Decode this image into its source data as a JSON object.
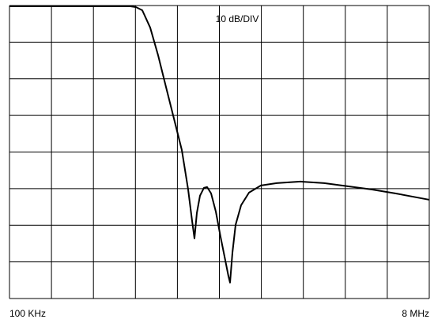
{
  "chart_data": {
    "type": "line",
    "annotation": "10 dB/DIV",
    "xlim": [
      0.1,
      8
    ],
    "xticks": [
      {
        "value": 0.1,
        "label": "100 KHz"
      },
      {
        "value": 8,
        "label": "8 MHz"
      }
    ],
    "ylim": [
      -80,
      0
    ],
    "yticks": [
      -80,
      -70,
      -60,
      -50,
      -40,
      -30,
      -20,
      -10,
      0
    ],
    "x_divisions": 10,
    "color": "#000000",
    "x": [
      0.1,
      1.409,
      2.376,
      2.48,
      2.599,
      2.748,
      2.897,
      3.045,
      3.194,
      3.343,
      3.462,
      3.537,
      3.581,
      3.626,
      3.685,
      3.76,
      3.819,
      3.894,
      3.983,
      4.072,
      4.162,
      4.221,
      4.251,
      4.296,
      4.355,
      4.459,
      4.608,
      4.831,
      5.129,
      5.575,
      6.022,
      6.468,
      6.914,
      7.361,
      8.0
    ],
    "values": [
      -0.22,
      -0.22,
      -0.22,
      -0.43,
      -1.29,
      -6.03,
      -13.58,
      -22.2,
      -30.82,
      -39.44,
      -50.22,
      -58.84,
      -63.58,
      -56.68,
      -51.94,
      -49.78,
      -49.57,
      -51.29,
      -56.25,
      -63.15,
      -69.61,
      -73.92,
      -75.65,
      -67.46,
      -59.91,
      -54.53,
      -51.08,
      -49.14,
      -48.5,
      -48.06,
      -48.5,
      -49.35,
      -50.22,
      -51.29,
      -53.03
    ]
  }
}
